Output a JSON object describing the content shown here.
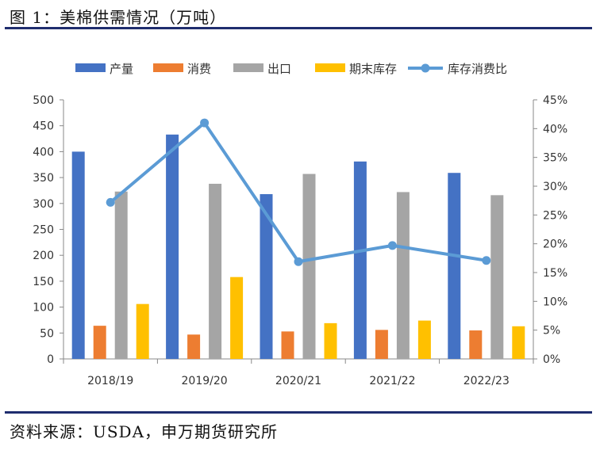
{
  "figure_title": "图 1：美棉供需情况（万吨）",
  "source": "资料来源：USDA，申万期货研究所",
  "chart_data": {
    "type": "bar",
    "categories": [
      "2018/19",
      "2019/20",
      "2020/21",
      "2021/22",
      "2022/23"
    ],
    "series": [
      {
        "name": "产量",
        "kind": "bar",
        "axis": "left",
        "color": "#4472c4",
        "values": [
          400,
          433,
          318,
          381,
          359
        ]
      },
      {
        "name": "消费",
        "kind": "bar",
        "axis": "left",
        "color": "#ed7d31",
        "values": [
          64,
          47,
          53,
          56,
          55
        ]
      },
      {
        "name": "出口",
        "kind": "bar",
        "axis": "left",
        "color": "#a5a5a5",
        "values": [
          323,
          338,
          357,
          322,
          316
        ]
      },
      {
        "name": "期末库存",
        "kind": "bar",
        "axis": "left",
        "color": "#ffc000",
        "values": [
          106,
          158,
          69,
          74,
          63
        ]
      },
      {
        "name": "库存消费比",
        "kind": "line",
        "axis": "right",
        "color": "#5b9bd5",
        "values": [
          27.2,
          41.0,
          16.9,
          19.7,
          17.1
        ]
      }
    ],
    "left_axis": {
      "min": 0,
      "max": 500,
      "step": 50,
      "ticks": [
        "0",
        "50",
        "100",
        "150",
        "200",
        "250",
        "300",
        "350",
        "400",
        "450",
        "500"
      ]
    },
    "right_axis": {
      "min": 0,
      "max": 45,
      "step": 5,
      "unit": "%",
      "ticks": [
        "0%",
        "5%",
        "10%",
        "15%",
        "20%",
        "25%",
        "30%",
        "35%",
        "40%",
        "45%"
      ]
    },
    "legend_position": "top",
    "grid": false
  }
}
